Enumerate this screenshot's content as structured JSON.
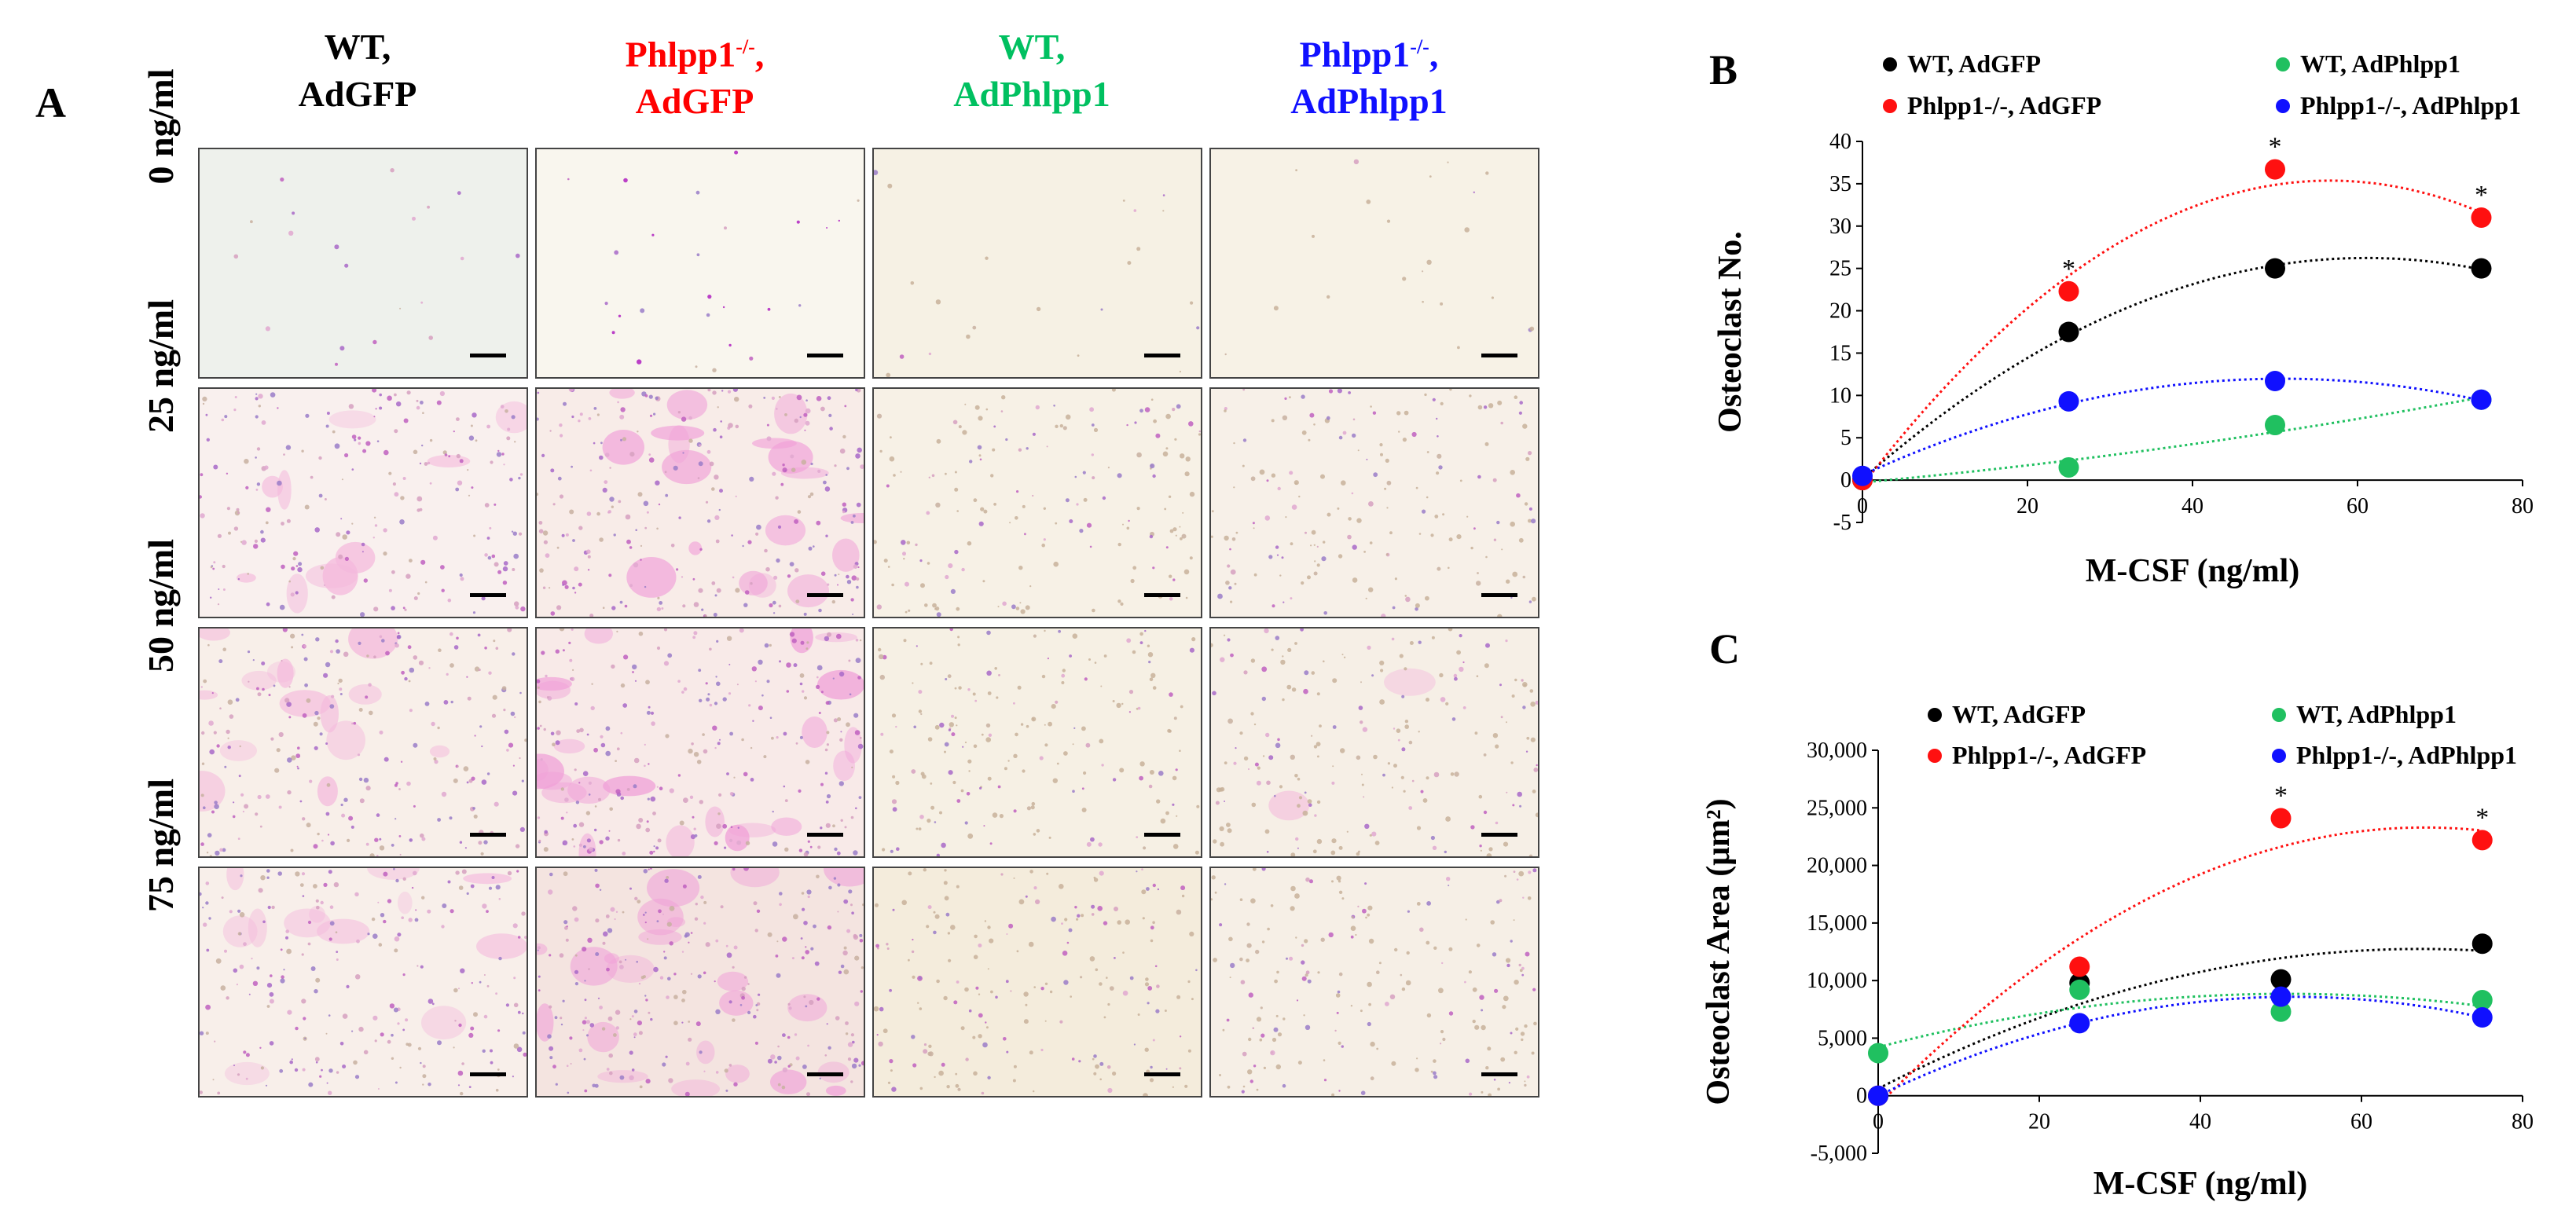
{
  "panel_a": {
    "letter": "A",
    "columns": [
      {
        "line1": "WT,",
        "line2": "AdGFP",
        "color": "#000000"
      },
      {
        "line1": "Phlpp1",
        "sup": "-/-",
        "line1_end": ",",
        "line2": "AdGFP",
        "color": "#ff0000"
      },
      {
        "line1": "WT,",
        "line2": "AdPhlpp1",
        "color": "#00c060"
      },
      {
        "line1": "Phlpp1",
        "sup": "-/-",
        "line1_end": ",",
        "line2": "AdPhlpp1",
        "color": "#1010ff"
      }
    ],
    "rows": [
      "0 ng/ml",
      "25 ng/ml",
      "50 ng/ml",
      "75 ng/ml"
    ]
  },
  "chart_data": [
    {
      "panel": "B",
      "type": "scatter",
      "xlabel": "M-CSF (ng/ml)",
      "ylabel": "Osteoclast No.",
      "xlim": [
        0,
        80
      ],
      "ylim": [
        -5,
        40
      ],
      "xticks": [
        0,
        20,
        40,
        60,
        80
      ],
      "yticks": [
        -5,
        0,
        5,
        10,
        15,
        20,
        25,
        30,
        35,
        40
      ],
      "x": [
        0,
        25,
        50,
        75
      ],
      "trendline": "polynomial order 2 (dotted)",
      "series": [
        {
          "name": "WT, AdGFP",
          "color": "#000000",
          "values": [
            0,
            17.5,
            25,
            25
          ]
        },
        {
          "name": "WT, AdPhlpp1",
          "color": "#20c060",
          "values": [
            0,
            1.5,
            6.5,
            9.5
          ]
        },
        {
          "name": "Phlpp1-/-, AdGFP",
          "color": "#ff1010",
          "values": [
            0,
            22.3,
            36.7,
            31
          ]
        },
        {
          "name": "Phlpp1-/-, AdPhlpp1",
          "color": "#1010ff",
          "values": [
            0.5,
            9.3,
            11.7,
            9.5
          ]
        }
      ],
      "annotations": [
        {
          "text": "*",
          "x": 25,
          "y": 22.3
        },
        {
          "text": "*",
          "x": 50,
          "y": 36.7
        },
        {
          "text": "*",
          "x": 75,
          "y": 31
        }
      ]
    },
    {
      "panel": "C",
      "type": "scatter",
      "xlabel": "M-CSF (ng/ml)",
      "ylabel": "Osteoclast Area (μm²)",
      "xlim": [
        0,
        80
      ],
      "ylim": [
        -5000,
        30000
      ],
      "xticks": [
        0,
        20,
        40,
        60,
        80
      ],
      "yticks": [
        -5000,
        0,
        5000,
        10000,
        15000,
        20000,
        25000,
        30000
      ],
      "ytick_labels": [
        "-5,000",
        "0",
        "5,000",
        "10,000",
        "15,000",
        "20,000",
        "25,000",
        "30,000"
      ],
      "x": [
        0,
        25,
        50,
        75
      ],
      "trendline": "polynomial order 2 (dotted)",
      "series": [
        {
          "name": "WT, AdGFP",
          "color": "#000000",
          "values": [
            0,
            9800,
            10100,
            13200
          ]
        },
        {
          "name": "WT, AdPhlpp1",
          "color": "#20c060",
          "values": [
            3700,
            9200,
            7300,
            8300
          ]
        },
        {
          "name": "Phlpp1-/-, AdGFP",
          "color": "#ff1010",
          "values": [
            0,
            11200,
            24100,
            22200
          ]
        },
        {
          "name": "Phlpp1-/-, AdPhlpp1",
          "color": "#1010ff",
          "values": [
            0,
            6300,
            8600,
            6800
          ]
        }
      ],
      "annotations": [
        {
          "text": "*",
          "x": 50,
          "y": 24100
        },
        {
          "text": "*",
          "x": 75,
          "y": 22200
        }
      ]
    }
  ]
}
